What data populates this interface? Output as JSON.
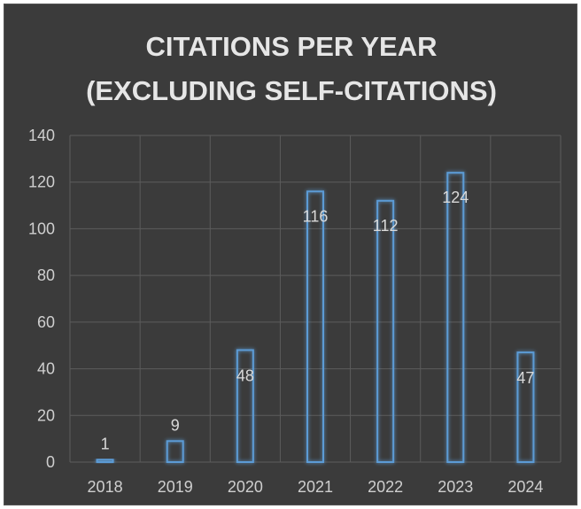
{
  "chart_data": {
    "type": "bar",
    "title_lines": [
      "CITATIONS PER YEAR",
      "(EXCLUDING SELF-CITATIONS)"
    ],
    "categories": [
      "2018",
      "2019",
      "2020",
      "2021",
      "2022",
      "2023",
      "2024"
    ],
    "values": [
      1,
      9,
      48,
      116,
      112,
      124,
      47
    ],
    "ylim": [
      0,
      140
    ],
    "yticks": [
      0,
      20,
      40,
      60,
      80,
      100,
      120,
      140
    ],
    "grid": true,
    "legend": "none",
    "colors": {
      "background": "#3b3b3b",
      "bar_outline": "#5b9bd5",
      "grid": "#5c5c5c",
      "text": "#cfcfcf"
    }
  }
}
